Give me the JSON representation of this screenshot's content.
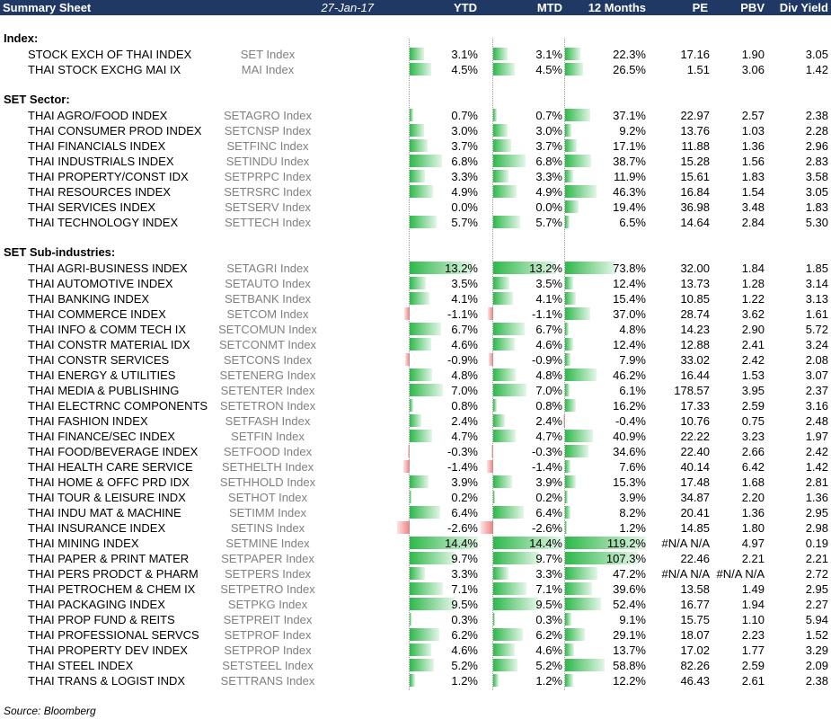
{
  "header": {
    "title": "Summary Sheet",
    "date": "27-Jan-17",
    "columns": [
      "YTD",
      "MTD",
      "12 Months",
      "PE",
      "PBV",
      "Div Yield"
    ]
  },
  "sections": [
    {
      "title": "Index:",
      "rows": [
        {
          "name": "STOCK EXCH OF THAI INDEX",
          "ticker": "SET Index",
          "ytd": "3.1%",
          "mtd": "3.1%",
          "m12": "22.3%",
          "pe": "17.16",
          "pbv": "1.90",
          "dy": "3.05"
        },
        {
          "name": "THAI STOCK EXCHG MAI IX",
          "ticker": "MAI Index",
          "ytd": "4.5%",
          "mtd": "4.5%",
          "m12": "26.5%",
          "pe": "1.51",
          "pbv": "3.06",
          "dy": "1.42"
        }
      ]
    },
    {
      "title": "SET Sector:",
      "rows": [
        {
          "name": "THAI AGRO/FOOD INDEX",
          "ticker": "SETAGRO Index",
          "ytd": "0.7%",
          "mtd": "0.7%",
          "m12": "37.1%",
          "pe": "22.97",
          "pbv": "2.57",
          "dy": "2.38"
        },
        {
          "name": "THAI CONSUMER PROD INDEX",
          "ticker": "SETCNSP Index",
          "ytd": "3.0%",
          "mtd": "3.0%",
          "m12": "9.2%",
          "pe": "13.76",
          "pbv": "1.03",
          "dy": "2.28"
        },
        {
          "name": "THAI FINANCIALS INDEX",
          "ticker": "SETFINC Index",
          "ytd": "3.7%",
          "mtd": "3.7%",
          "m12": "17.1%",
          "pe": "11.88",
          "pbv": "1.36",
          "dy": "2.96"
        },
        {
          "name": "THAI INDUSTRIALS INDEX",
          "ticker": "SETINDU Index",
          "ytd": "6.8%",
          "mtd": "6.8%",
          "m12": "38.7%",
          "pe": "15.28",
          "pbv": "1.56",
          "dy": "2.83"
        },
        {
          "name": "THAI PROPERTY/CONST IDX",
          "ticker": "SETPRPC Index",
          "ytd": "3.3%",
          "mtd": "3.3%",
          "m12": "11.9%",
          "pe": "15.61",
          "pbv": "1.83",
          "dy": "3.58"
        },
        {
          "name": "THAI RESOURCES INDEX",
          "ticker": "SETRSRC Index",
          "ytd": "4.9%",
          "mtd": "4.9%",
          "m12": "46.3%",
          "pe": "16.84",
          "pbv": "1.54",
          "dy": "3.05"
        },
        {
          "name": "THAI SERVICES INDEX",
          "ticker": "SETSERV Index",
          "ytd": "0.0%",
          "mtd": "0.0%",
          "m12": "19.4%",
          "pe": "36.98",
          "pbv": "3.48",
          "dy": "1.83"
        },
        {
          "name": "THAI TECHNOLOGY INDEX",
          "ticker": "SETTECH Index",
          "ytd": "5.7%",
          "mtd": "5.7%",
          "m12": "6.5%",
          "pe": "14.64",
          "pbv": "2.84",
          "dy": "5.30"
        }
      ]
    },
    {
      "title": "SET Sub-industries:",
      "rows": [
        {
          "name": "THAI AGRI-BUSINESS INDEX",
          "ticker": "SETAGRI Index",
          "ytd": "13.2%",
          "mtd": "13.2%",
          "m12": "73.8%",
          "pe": "32.00",
          "pbv": "1.84",
          "dy": "1.85"
        },
        {
          "name": "THAI AUTOMOTIVE INDEX",
          "ticker": "SETAUTO Index",
          "ytd": "3.5%",
          "mtd": "3.5%",
          "m12": "12.4%",
          "pe": "13.73",
          "pbv": "1.28",
          "dy": "3.14"
        },
        {
          "name": "THAI BANKING INDEX",
          "ticker": "SETBANK Index",
          "ytd": "4.1%",
          "mtd": "4.1%",
          "m12": "15.4%",
          "pe": "10.85",
          "pbv": "1.22",
          "dy": "3.13"
        },
        {
          "name": "THAI COMMERCE INDEX",
          "ticker": "SETCOM Index",
          "ytd": "-1.1%",
          "mtd": "-1.1%",
          "m12": "37.0%",
          "pe": "28.74",
          "pbv": "3.62",
          "dy": "1.61"
        },
        {
          "name": "THAI INFO & COMM TECH IX",
          "ticker": "SETCOMUN Index",
          "ytd": "6.7%",
          "mtd": "6.7%",
          "m12": "4.8%",
          "pe": "14.23",
          "pbv": "2.90",
          "dy": "5.72"
        },
        {
          "name": "THAI CONSTR MATERIAL IDX",
          "ticker": "SETCONMT Index",
          "ytd": "4.6%",
          "mtd": "4.6%",
          "m12": "12.4%",
          "pe": "12.88",
          "pbv": "2.41",
          "dy": "3.24"
        },
        {
          "name": "THAI CONSTR SERVICES",
          "ticker": "SETCONS Index",
          "ytd": "-0.9%",
          "mtd": "-0.9%",
          "m12": "7.9%",
          "pe": "33.02",
          "pbv": "2.42",
          "dy": "2.08"
        },
        {
          "name": "THAI ENERGY & UTILITIES",
          "ticker": "SETENERG Index",
          "ytd": "4.8%",
          "mtd": "4.8%",
          "m12": "46.2%",
          "pe": "16.44",
          "pbv": "1.53",
          "dy": "3.07"
        },
        {
          "name": "THAI MEDIA & PUBLISHING",
          "ticker": "SETENTER Index",
          "ytd": "7.0%",
          "mtd": "7.0%",
          "m12": "6.1%",
          "pe": "178.57",
          "pbv": "3.95",
          "dy": "2.37"
        },
        {
          "name": "THAI ELECTRNC COMPONENTS",
          "ticker": "SETETRON Index",
          "ytd": "0.8%",
          "mtd": "0.8%",
          "m12": "16.2%",
          "pe": "17.33",
          "pbv": "2.59",
          "dy": "3.16"
        },
        {
          "name": "THAI FASHION INDEX",
          "ticker": "SETFASH Index",
          "ytd": "2.4%",
          "mtd": "2.4%",
          "m12": "-0.4%",
          "pe": "10.76",
          "pbv": "0.75",
          "dy": "2.48"
        },
        {
          "name": "THAI FINANCE/SEC INDEX",
          "ticker": "SETFIN Index",
          "ytd": "4.7%",
          "mtd": "4.7%",
          "m12": "40.9%",
          "pe": "22.22",
          "pbv": "3.23",
          "dy": "1.97"
        },
        {
          "name": "THAI FOOD/BEVERAGE INDEX",
          "ticker": "SETFOOD Index",
          "ytd": "-0.3%",
          "mtd": "-0.3%",
          "m12": "34.6%",
          "pe": "22.40",
          "pbv": "2.66",
          "dy": "2.42"
        },
        {
          "name": "THAI HEALTH CARE SERVICE",
          "ticker": "SETHELTH Index",
          "ytd": "-1.4%",
          "mtd": "-1.4%",
          "m12": "7.6%",
          "pe": "40.14",
          "pbv": "6.42",
          "dy": "1.42"
        },
        {
          "name": "THAI HOME & OFFC PRD IDX",
          "ticker": "SETHHOLD Index",
          "ytd": "3.9%",
          "mtd": "3.9%",
          "m12": "15.3%",
          "pe": "17.48",
          "pbv": "1.68",
          "dy": "2.81"
        },
        {
          "name": "THAI TOUR & LEISURE INDX",
          "ticker": "SETHOT Index",
          "ytd": "0.2%",
          "mtd": "0.2%",
          "m12": "3.9%",
          "pe": "34.87",
          "pbv": "2.20",
          "dy": "1.36"
        },
        {
          "name": "THAI INDU MAT & MACHINE",
          "ticker": "SETIMM Index",
          "ytd": "6.4%",
          "mtd": "6.4%",
          "m12": "8.2%",
          "pe": "20.41",
          "pbv": "1.36",
          "dy": "2.95"
        },
        {
          "name": "THAI INSURANCE INDEX",
          "ticker": "SETINS Index",
          "ytd": "-2.6%",
          "mtd": "-2.6%",
          "m12": "1.2%",
          "pe": "14.85",
          "pbv": "1.80",
          "dy": "2.98"
        },
        {
          "name": "THAI MINING INDEX",
          "ticker": "SETMINE Index",
          "ytd": "14.4%",
          "mtd": "14.4%",
          "m12": "119.2%",
          "pe": "#N/A N/A",
          "pbv": "4.97",
          "dy": "0.19"
        },
        {
          "name": "THAI PAPER & PRINT MATER",
          "ticker": "SETPAPER Index",
          "ytd": "9.7%",
          "mtd": "9.7%",
          "m12": "107.3%",
          "pe": "22.46",
          "pbv": "2.21",
          "dy": "2.21"
        },
        {
          "name": "THAI PERS PRODCT & PHARM",
          "ticker": "SETPERS Index",
          "ytd": "3.3%",
          "mtd": "3.3%",
          "m12": "47.2%",
          "pe": "#N/A N/A",
          "pbv": "#N/A N/A",
          "dy": "2.72"
        },
        {
          "name": "THAI PETROCHEM & CHEM IX",
          "ticker": "SETPETRO Index",
          "ytd": "7.1%",
          "mtd": "7.1%",
          "m12": "39.6%",
          "pe": "13.58",
          "pbv": "1.49",
          "dy": "2.95"
        },
        {
          "name": "THAI PACKAGING INDEX",
          "ticker": "SETPKG Index",
          "ytd": "9.5%",
          "mtd": "9.5%",
          "m12": "52.4%",
          "pe": "16.77",
          "pbv": "1.94",
          "dy": "2.27"
        },
        {
          "name": "THAI PROP FUND & REITS",
          "ticker": "SETPREIT Index",
          "ytd": "0.3%",
          "mtd": "0.3%",
          "m12": "9.1%",
          "pe": "15.75",
          "pbv": "1.10",
          "dy": "5.94"
        },
        {
          "name": "THAI PROFESSIONAL SERVCS",
          "ticker": "SETPROF Index",
          "ytd": "6.2%",
          "mtd": "6.2%",
          "m12": "29.1%",
          "pe": "18.07",
          "pbv": "2.23",
          "dy": "1.52"
        },
        {
          "name": "THAI PROPERTY DEV INDEX",
          "ticker": "SETPROP Index",
          "ytd": "4.6%",
          "mtd": "4.6%",
          "m12": "13.7%",
          "pe": "17.02",
          "pbv": "1.77",
          "dy": "3.29"
        },
        {
          "name": "THAI STEEL INDEX",
          "ticker": "SETSTEEL Index",
          "ytd": "5.2%",
          "mtd": "5.2%",
          "m12": "58.8%",
          "pe": "82.26",
          "pbv": "2.59",
          "dy": "2.09"
        },
        {
          "name": "THAI TRANS & LOGIST INDX",
          "ticker": "SETTRANS Index",
          "ytd": "1.2%",
          "mtd": "1.2%",
          "m12": "12.2%",
          "pe": "46.43",
          "pbv": "2.61",
          "dy": "2.38"
        }
      ]
    }
  ],
  "footer": {
    "source": "Source: Bloomberg"
  },
  "colors": {
    "header_bg": "#1f3864",
    "bar_positive": "#2eb84a",
    "bar_negative": "#f08080",
    "ticker_text": "#808080"
  }
}
